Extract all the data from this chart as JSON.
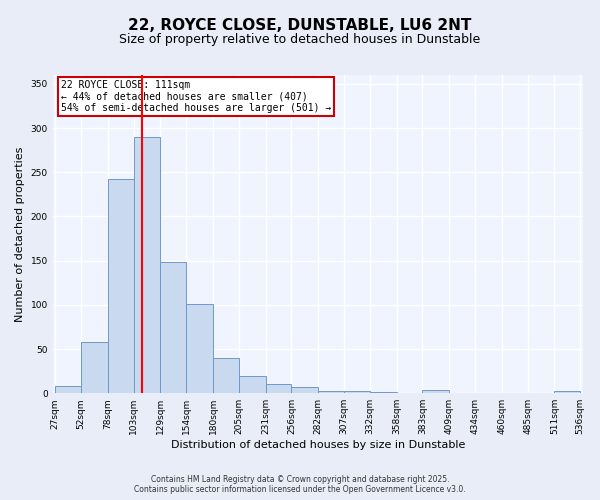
{
  "title_line1": "22, ROYCE CLOSE, DUNSTABLE, LU6 2NT",
  "title_line2": "Size of property relative to detached houses in Dunstable",
  "xlabel": "Distribution of detached houses by size in Dunstable",
  "ylabel": "Number of detached properties",
  "bar_edges": [
    27,
    52,
    78,
    103,
    129,
    154,
    180,
    205,
    231,
    256,
    282,
    307,
    332,
    358,
    383,
    409,
    434,
    460,
    485,
    511,
    536
  ],
  "bar_heights": [
    8,
    58,
    242,
    290,
    148,
    101,
    40,
    20,
    10,
    7,
    3,
    3,
    1,
    0,
    4,
    0,
    0,
    0,
    0,
    2,
    0
  ],
  "bar_color": "#c9d9f0",
  "bar_edge_color": "#7098c8",
  "red_line_x": 111,
  "annotation_title": "22 ROYCE CLOSE: 111sqm",
  "annotation_line2": "← 44% of detached houses are smaller (407)",
  "annotation_line3": "54% of semi-detached houses are larger (501) →",
  "annotation_box_color": "#ffffff",
  "annotation_edge_color": "#cc0000",
  "ylim": [
    0,
    360
  ],
  "yticks": [
    0,
    50,
    100,
    150,
    200,
    250,
    300,
    350
  ],
  "footer_line1": "Contains HM Land Registry data © Crown copyright and database right 2025.",
  "footer_line2": "Contains public sector information licensed under the Open Government Licence v3.0.",
  "bg_color": "#e8edf8",
  "plot_bg_color": "#f0f4ff",
  "title_fontsize": 11,
  "subtitle_fontsize": 9,
  "axis_label_fontsize": 8,
  "tick_fontsize": 6.5,
  "footer_fontsize": 5.5,
  "annotation_fontsize": 7
}
